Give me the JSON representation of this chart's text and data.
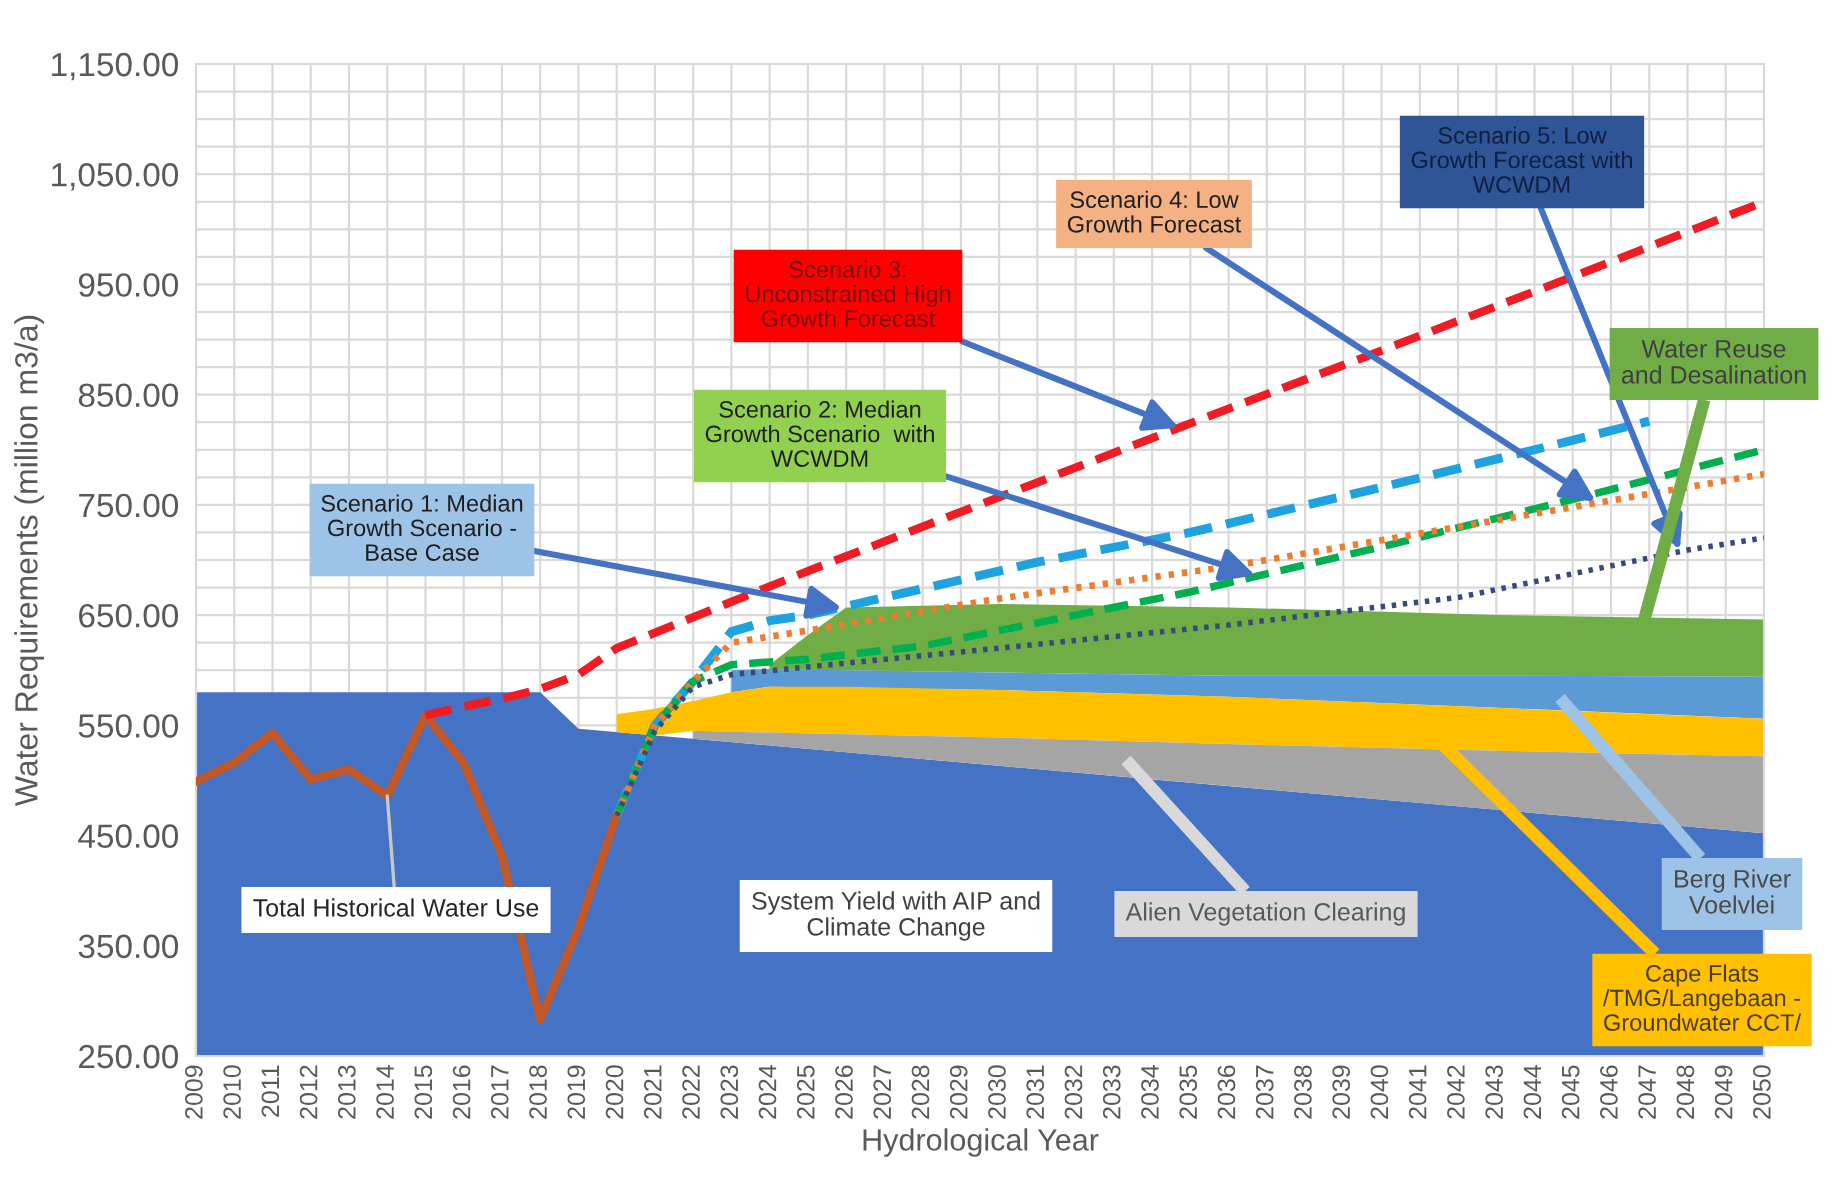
{
  "chart_data": {
    "type": "area",
    "xlabel": "Hydrological Year",
    "ylabel": "Water Requirements (million m3/a)",
    "xlim": [
      2009,
      2050
    ],
    "xticks": [
      2009,
      2010,
      2011,
      2012,
      2013,
      2014,
      2015,
      2016,
      2017,
      2018,
      2019,
      2020,
      2021,
      2022,
      2023,
      2024,
      2025,
      2026,
      2027,
      2028,
      2029,
      2030,
      2031,
      2032,
      2033,
      2034,
      2035,
      2036,
      2037,
      2038,
      2039,
      2040,
      2041,
      2042,
      2043,
      2044,
      2045,
      2046,
      2047,
      2048,
      2049,
      2050
    ],
    "ylim": [
      250,
      1150
    ],
    "yticks": [
      {
        "value": 250,
        "label": "250.00"
      },
      {
        "value": 350,
        "label": "350.00"
      },
      {
        "value": 450,
        "label": "450.00"
      },
      {
        "value": 550,
        "label": "550.00"
      },
      {
        "value": 575,
        "label": null
      },
      {
        "value": 600,
        "label": null
      },
      {
        "value": 625,
        "label": null
      },
      {
        "value": 650,
        "label": "650.00"
      },
      {
        "value": 675,
        "label": null
      },
      {
        "value": 700,
        "label": null
      },
      {
        "value": 725,
        "label": null
      },
      {
        "value": 750,
        "label": "750.00"
      },
      {
        "value": 775,
        "label": null
      },
      {
        "value": 800,
        "label": null
      },
      {
        "value": 825,
        "label": null
      },
      {
        "value": 850,
        "label": "850.00"
      },
      {
        "value": 875,
        "label": null
      },
      {
        "value": 900,
        "label": null
      },
      {
        "value": 925,
        "label": null
      },
      {
        "value": 950,
        "label": "950.00"
      },
      {
        "value": 975,
        "label": null
      },
      {
        "value": 1000,
        "label": null
      },
      {
        "value": 1025,
        "label": null
      },
      {
        "value": 1050,
        "label": "1,050.00"
      },
      {
        "value": 1075,
        "label": null
      },
      {
        "value": 1100,
        "label": null
      },
      {
        "value": 1125,
        "label": null
      },
      {
        "value": 1150,
        "label": "1,150.00"
      }
    ],
    "grid": true,
    "series": [
      {
        "color": "#4472c4",
        "x": [
          2009,
          2018,
          2019,
          2050
        ],
        "values": [
          580,
          580,
          547,
          452
        ]
      },
      {
        "color": "#70ad47",
        "x": [
          2024,
          2025,
          2026,
          2030,
          2036,
          2043,
          2050
        ],
        "values": [
          605,
          632,
          657,
          660,
          657,
          650,
          646
        ]
      },
      {
        "color": "#5b9bd5",
        "x": [
          2023,
          2024,
          2030,
          2036,
          2043,
          2050
        ],
        "values": [
          600,
          601,
          598,
          595,
          595,
          594
        ]
      },
      {
        "color": "#ffc000",
        "x": [
          2020,
          2021,
          2022,
          2023,
          2024,
          2026,
          2030,
          2036,
          2043,
          2047,
          2050
        ],
        "values": [
          560,
          565,
          572,
          580,
          585,
          585,
          582,
          576,
          566,
          560,
          556
        ]
      },
      {
        "color": "#a5a5a5",
        "x": [
          2022,
          2026,
          2030,
          2036,
          2043,
          2047,
          2050
        ],
        "values": [
          545,
          542,
          539,
          533,
          527,
          524,
          522
        ]
      },
      {
        "type": "line",
        "color": "#c0582a",
        "line_style": "solid",
        "x": [
          2009,
          2010,
          2011,
          2012,
          2013,
          2014,
          2015,
          2016,
          2017,
          2018,
          2019,
          2020
        ],
        "values": [
          499,
          516,
          543,
          501,
          510,
          486,
          559,
          516,
          432,
          283,
          366,
          468
        ]
      },
      {
        "type": "line",
        "color": "#1fa3e0",
        "line_style": "dashed",
        "x": [
          2020,
          2021,
          2022,
          2023,
          2024,
          2025,
          2028,
          2031,
          2035,
          2040,
          2044,
          2047
        ],
        "values": [
          468,
          550,
          590,
          635,
          645,
          650,
          674,
          698,
          725,
          766,
          800,
          826
        ]
      },
      {
        "type": "line",
        "color": "#00b050",
        "line_style": "dashed",
        "x": [
          2020,
          2021,
          2022,
          2023,
          2025,
          2028,
          2031,
          2035,
          2040,
          2045,
          2050
        ],
        "values": [
          468,
          550,
          590,
          605,
          610,
          622,
          643,
          671,
          712,
          755,
          800
        ]
      },
      {
        "type": "line",
        "color": "#ed7d31",
        "line_style": "dotted",
        "x": [
          2020,
          2021,
          2022,
          2023,
          2025,
          2030,
          2036,
          2040,
          2045,
          2050
        ],
        "values": [
          468,
          550,
          590,
          625,
          636,
          665,
          694,
          718,
          748,
          778
        ]
      },
      {
        "type": "line",
        "color": "#3a4a78",
        "line_style": "dotted",
        "x": [
          2020,
          2021,
          2022,
          2023,
          2025,
          2030,
          2036,
          2042,
          2048,
          2050
        ],
        "values": [
          468,
          545,
          585,
          596,
          603,
          620,
          641,
          666,
          709,
          720
        ]
      },
      {
        "type": "line",
        "color": "#f01c24",
        "line_style": "dashed",
        "x": [
          2015,
          2016,
          2017,
          2018,
          2019,
          2020,
          2025,
          2030,
          2035,
          2040,
          2045,
          2050
        ],
        "values": [
          559,
          567,
          574,
          583,
          596,
          620,
          690,
          757,
          824,
          890,
          957,
          1025
        ]
      }
    ],
    "annotations": [
      {
        "text": "Scenario 1: Median\nGrowth Scenario -\nBase Case",
        "x": 2025.9,
        "y": 656
      },
      {
        "text": "Scenario 2: Median\nGrowth Scenario  with\nWCWDM",
        "x": 2036.7,
        "y": 686
      },
      {
        "text": "Scenario 3:\nUnconstrained High\nGrowth Forecast",
        "x": 2034.7,
        "y": 820
      },
      {
        "text": "Scenario 4: Low\nGrowth Forecast",
        "x": 2045.6,
        "y": 753
      },
      {
        "text": "Scenario 5: Low\nGrowth Forecast with\nWCWDM",
        "x": 2047.8,
        "y": 709
      },
      "Water Reuse\nand Desalination",
      "Berg River\nVoelvlei",
      "Cape Flats\n/TMG/Langebaan -\nGroundwater CCT/",
      "Alien Vegetation Clearing",
      "System Yield with AIP and\nClimate Change",
      {
        "text": "Total Historical Water Use",
        "x": 2014,
        "y": 486
      }
    ]
  }
}
